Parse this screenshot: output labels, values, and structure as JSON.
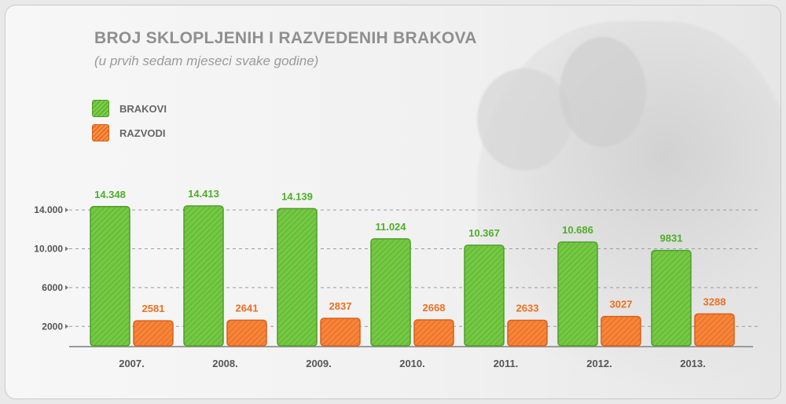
{
  "title": "BROJ SKLOPLJENIH I RAZVEDENIH BRAKOVA",
  "subtitle": "(u prvih sedam mjeseci svake godine)",
  "legend": [
    {
      "label": "BRAKOVI",
      "color": "#6cbf3c"
    },
    {
      "label": "RAZVODI",
      "color": "#f07a2e"
    }
  ],
  "chart_data": {
    "type": "bar",
    "categories": [
      "2007.",
      "2008.",
      "2009.",
      "2010.",
      "2011.",
      "2012.",
      "2013."
    ],
    "series": [
      {
        "name": "BRAKOVI",
        "values": [
          14348,
          14413,
          14139,
          11024,
          10367,
          10686,
          9831
        ],
        "labels": [
          "14.348",
          "14.413",
          "14.139",
          "11.024",
          "10.367",
          "10.686",
          "9831"
        ],
        "color": "#6cbf3c",
        "label_color": "#4fae2a"
      },
      {
        "name": "RAZVODI",
        "values": [
          2581,
          2641,
          2837,
          2668,
          2633,
          3027,
          3288
        ],
        "labels": [
          "2581",
          "2641",
          "2837",
          "2668",
          "2633",
          "3027",
          "3288"
        ],
        "color": "#f07a2e",
        "label_color": "#ee6f1f"
      }
    ],
    "yticks": [
      {
        "value": 2000,
        "label": "2000"
      },
      {
        "value": 6000,
        "label": "6000"
      },
      {
        "value": 10000,
        "label": "10.000"
      },
      {
        "value": 14000,
        "label": "14.000"
      }
    ],
    "ylim": [
      0,
      16000
    ],
    "grid": true,
    "legend_position": "top-left"
  }
}
